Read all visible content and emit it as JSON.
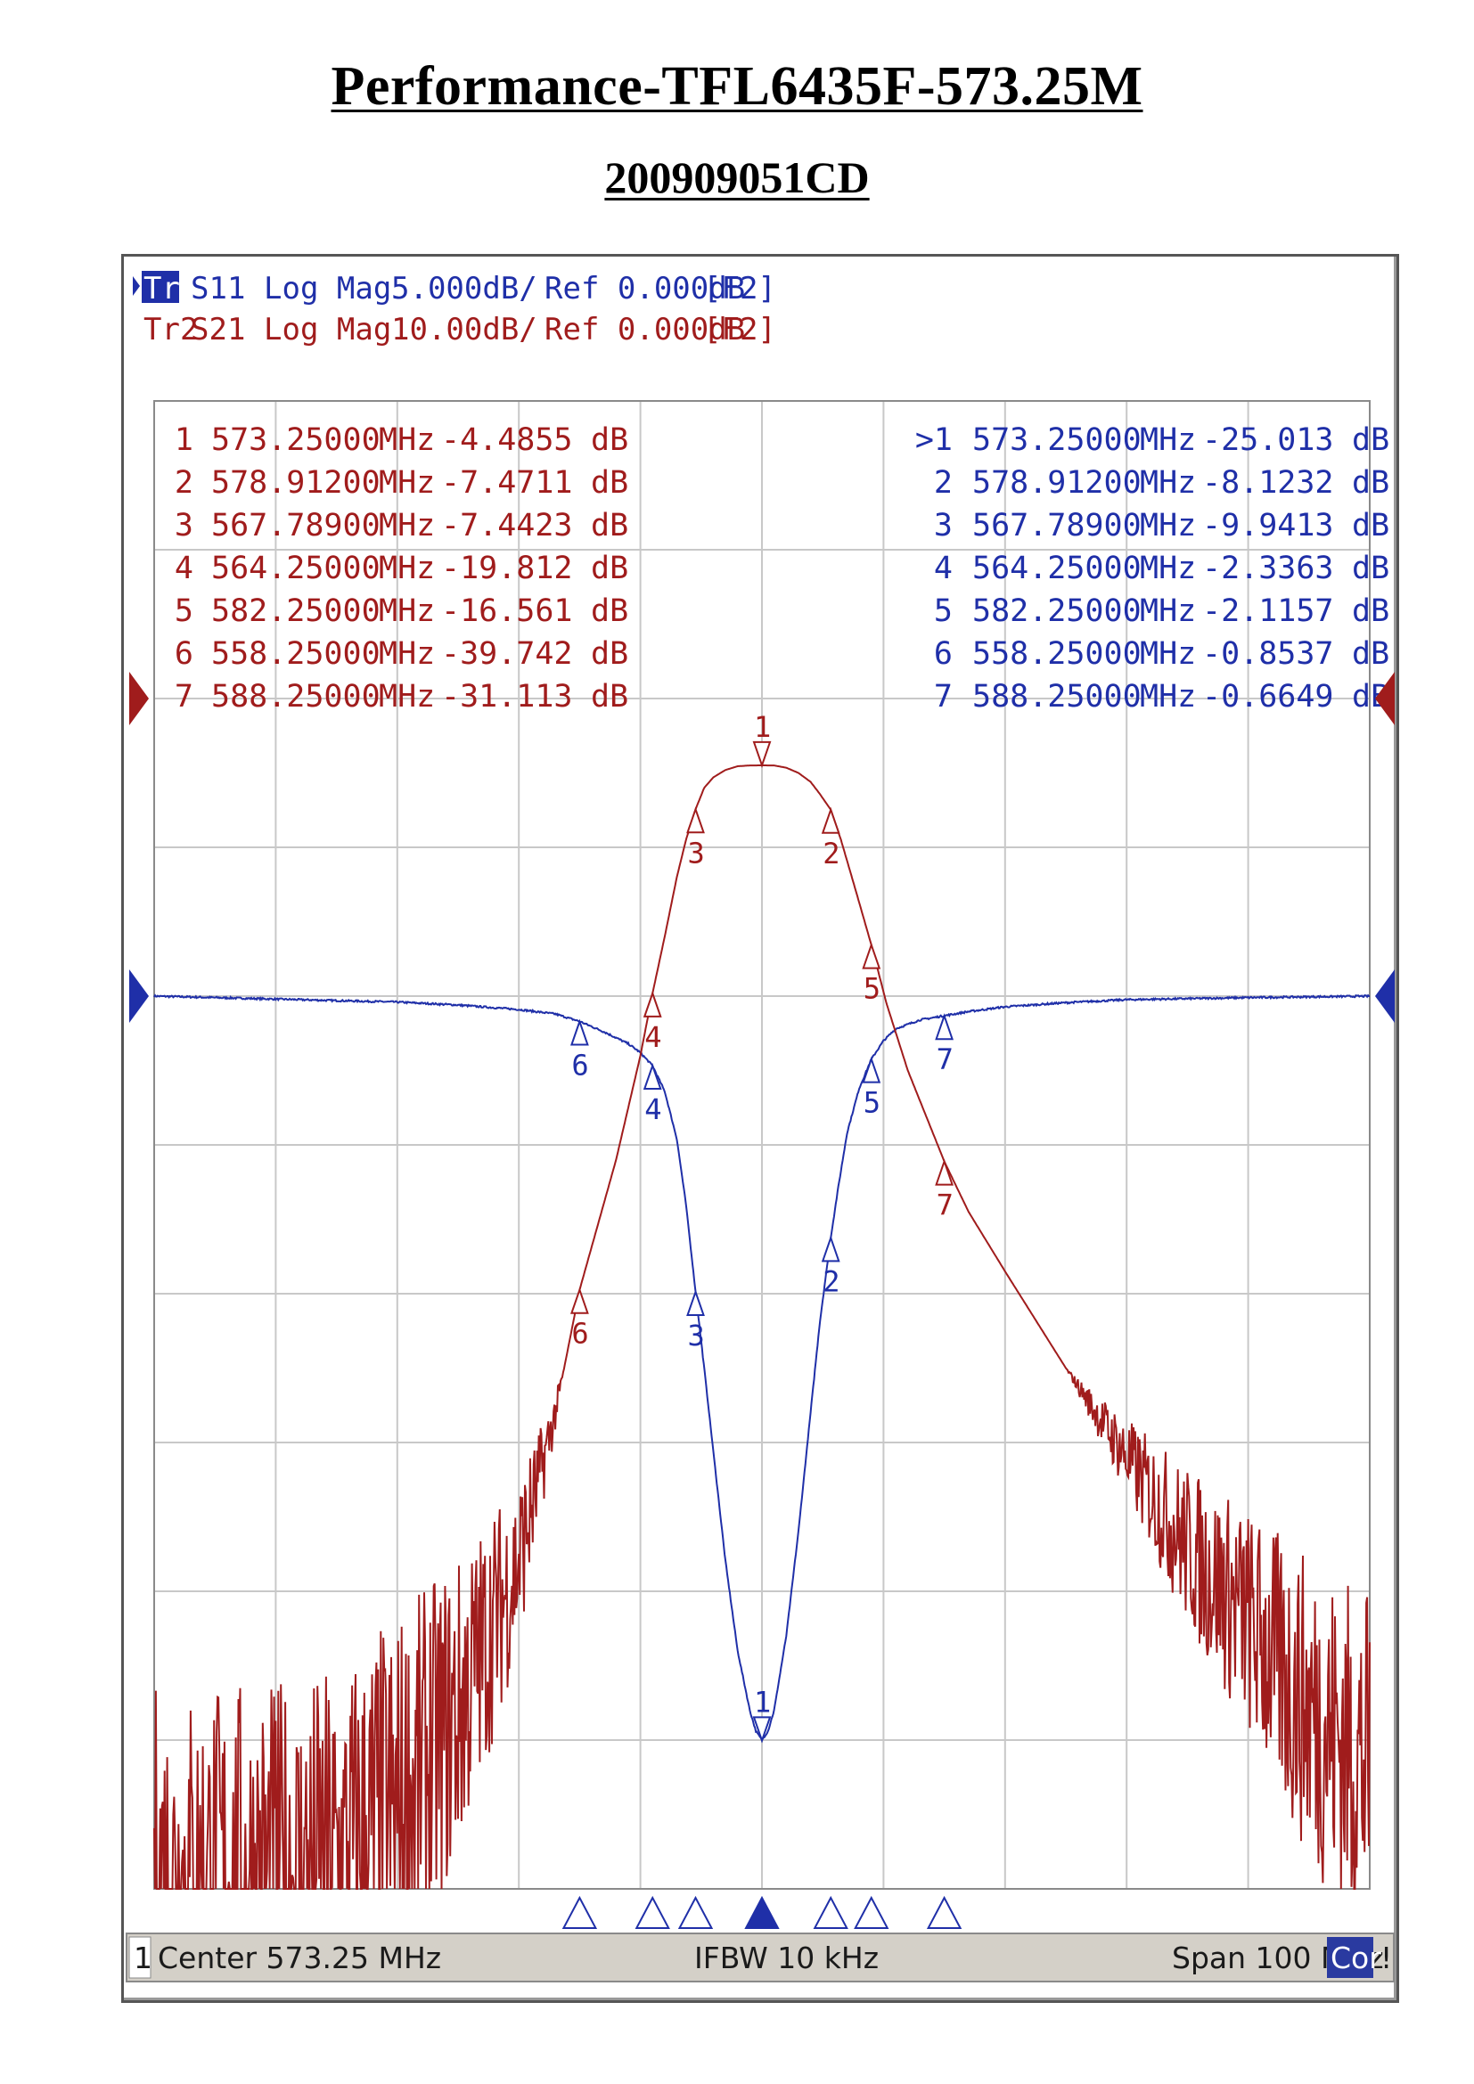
{
  "document": {
    "title": "Performance-TFL6435F-573.25M",
    "subtitle": "200909051CD"
  },
  "colors": {
    "tr1": "#1f2fa8",
    "tr2": "#a01c1c",
    "grid": "#c8c8c8",
    "status_bar": "#d4d0c8",
    "cor_badge": "#2a3aa0"
  },
  "traces": {
    "tr1": {
      "id": "Tr1",
      "param": "S11",
      "format": "Log Mag",
      "scale": "5.000dB/",
      "ref": "Ref 0.000dB",
      "tag": "[F2]"
    },
    "tr2": {
      "id": "Tr2",
      "param": "S21",
      "format": "Log Mag",
      "scale": "10.00dB/",
      "ref": "Ref 0.000dB",
      "tag": "[F2]"
    }
  },
  "markers": {
    "tr2": [
      {
        "n": "1",
        "freq": "573.25000",
        "unit": "MHz",
        "value": "-4.4855",
        "db": "dB"
      },
      {
        "n": "2",
        "freq": "578.91200",
        "unit": "MHz",
        "value": "-7.4711",
        "db": "dB"
      },
      {
        "n": "3",
        "freq": "567.78900",
        "unit": "MHz",
        "value": "-7.4423",
        "db": "dB"
      },
      {
        "n": "4",
        "freq": "564.25000",
        "unit": "MHz",
        "value": "-19.812",
        "db": "dB"
      },
      {
        "n": "5",
        "freq": "582.25000",
        "unit": "MHz",
        "value": "-16.561",
        "db": "dB"
      },
      {
        "n": "6",
        "freq": "558.25000",
        "unit": "MHz",
        "value": "-39.742",
        "db": "dB"
      },
      {
        "n": "7",
        "freq": "588.25000",
        "unit": "MHz",
        "value": "-31.113",
        "db": "dB"
      }
    ],
    "tr1": [
      {
        "n": ">1",
        "freq": "573.25000",
        "unit": "MHz",
        "value": "-25.013",
        "db": "dB"
      },
      {
        "n": "2",
        "freq": "578.91200",
        "unit": "MHz",
        "value": "-8.1232",
        "db": "dB"
      },
      {
        "n": "3",
        "freq": "567.78900",
        "unit": "MHz",
        "value": "-9.9413",
        "db": "dB"
      },
      {
        "n": "4",
        "freq": "564.25000",
        "unit": "MHz",
        "value": "-2.3363",
        "db": "dB"
      },
      {
        "n": "5",
        "freq": "582.25000",
        "unit": "MHz",
        "value": "-2.1157",
        "db": "dB"
      },
      {
        "n": "6",
        "freq": "558.25000",
        "unit": "MHz",
        "value": "-0.8537",
        "db": "dB"
      },
      {
        "n": "7",
        "freq": "588.25000",
        "unit": "MHz",
        "value": "-0.6649",
        "db": "dB"
      }
    ]
  },
  "status_bar": {
    "channel": "1",
    "center": "Center 573.25 MHz",
    "ifbw": "IFBW 10 kHz",
    "span": "Span 100 MHz",
    "cor": "Cor",
    "alert": "!"
  },
  "chart_data": {
    "type": "line",
    "x_range_mhz": [
      523.25,
      623.25
    ],
    "grid": true,
    "divisions": 10,
    "series": [
      {
        "name": "S11",
        "scale_db_per_div": 5,
        "ref_db": 0,
        "ref_position_div": 6,
        "x": [
          523.25,
          533.25,
          543.25,
          548.25,
          553.25,
          556.25,
          558.25,
          560.25,
          562.25,
          563.25,
          564.25,
          565.25,
          566.25,
          567.0,
          567.79,
          568.5,
          569.25,
          570.25,
          571.25,
          572.25,
          572.75,
          573.25,
          573.75,
          574.25,
          575.25,
          576.25,
          577.25,
          578.0,
          578.91,
          579.5,
          580.25,
          581.25,
          582.25,
          583.25,
          584.25,
          586.25,
          588.25,
          590.25,
          593.25,
          598.25,
          603.25,
          613.25,
          623.25
        ],
        "y": [
          0.0,
          -0.1,
          -0.2,
          -0.3,
          -0.45,
          -0.6,
          -0.85,
          -1.2,
          -1.6,
          -1.9,
          -2.34,
          -3.2,
          -4.8,
          -7.0,
          -9.94,
          -12.5,
          -15.3,
          -19.0,
          -22.0,
          -24.0,
          -24.7,
          -25.0,
          -24.7,
          -24.0,
          -21.5,
          -18.0,
          -14.0,
          -11.0,
          -8.12,
          -6.5,
          -4.6,
          -3.1,
          -2.12,
          -1.5,
          -1.1,
          -0.8,
          -0.66,
          -0.52,
          -0.36,
          -0.22,
          -0.12,
          -0.05,
          0.0
        ]
      },
      {
        "name": "S21",
        "scale_db_per_div": 10,
        "ref_db": 0,
        "ref_position_div": 8,
        "x": [
          523.25,
          528.25,
          533.25,
          538.25,
          543.25,
          548.25,
          553.25,
          556.25,
          558.25,
          561.25,
          563.25,
          564.25,
          565.25,
          566.25,
          567.0,
          567.79,
          568.5,
          569.25,
          570.25,
          571.25,
          572.25,
          573.25,
          574.25,
          575.25,
          576.25,
          577.25,
          578.0,
          578.91,
          579.75,
          581.0,
          582.25,
          583.5,
          585.25,
          588.25,
          590.25,
          593.25,
          598.25,
          603.25,
          608.25,
          613.25,
          618.25,
          623.25
        ],
        "y": [
          -80,
          -80,
          -80,
          -79,
          -75,
          -68,
          -58,
          -48,
          -39.74,
          -31,
          -24,
          -19.81,
          -16,
          -12,
          -9.5,
          -7.44,
          -6.0,
          -5.3,
          -4.8,
          -4.55,
          -4.5,
          -4.49,
          -4.5,
          -4.65,
          -5.0,
          -5.6,
          -6.4,
          -7.47,
          -9.5,
          -13,
          -16.56,
          -20.5,
          -25,
          -31.11,
          -34.5,
          -38.5,
          -45,
          -51,
          -57,
          -62,
          -68,
          -72
        ]
      }
    ]
  }
}
